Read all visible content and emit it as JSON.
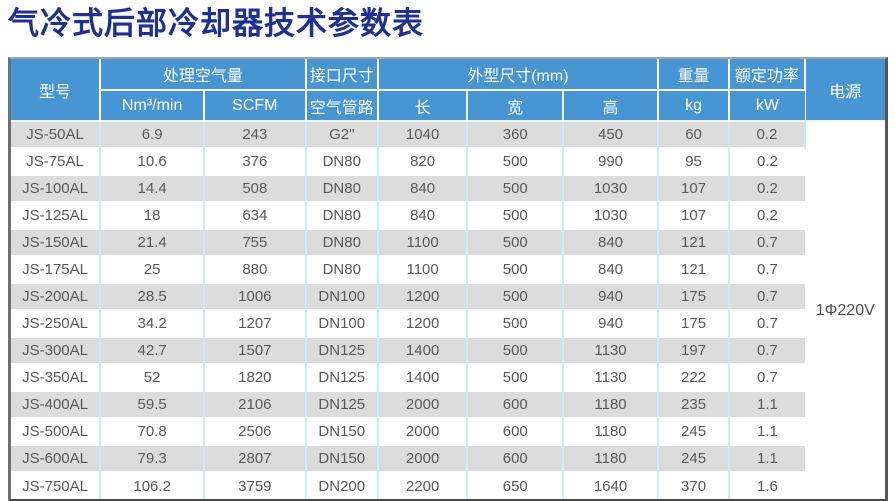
{
  "title": "气冷式后部冷却器技术参数表",
  "colors": {
    "title_text": "#1f3190",
    "header_bg": "#4796d3",
    "header_text": "#ffffff",
    "row_stripe": "#dcdcdc",
    "column_divider": "#d3e9f6",
    "body_text": "#595959"
  },
  "table": {
    "header": {
      "model": "型号",
      "air_volume": "处理空气量",
      "air_volume_units": [
        "Nm³/min",
        "SCFM"
      ],
      "interface_size": "接口尺寸",
      "interface_sub": "空气管路",
      "dimensions": "外型尺寸(mm)",
      "dimension_subs": [
        "长",
        "宽",
        "高"
      ],
      "weight": "重量",
      "weight_unit": "kg",
      "rated_power": "额定功率",
      "rated_power_unit": "kW",
      "power_supply": "电源"
    },
    "power_supply_value": "1Φ220V",
    "column_keys": [
      "model",
      "nm3-per-min",
      "scfm",
      "air-pipe",
      "length",
      "width",
      "height",
      "weight-kg",
      "power-kw"
    ],
    "rows": [
      [
        "JS-50AL",
        "6.9",
        "243",
        "G2\"",
        "1040",
        "360",
        "450",
        "60",
        "0.2"
      ],
      [
        "JS-75AL",
        "10.6",
        "376",
        "DN80",
        "820",
        "500",
        "990",
        "95",
        "0.2"
      ],
      [
        "JS-100AL",
        "14.4",
        "508",
        "DN80",
        "840",
        "500",
        "1030",
        "107",
        "0.2"
      ],
      [
        "JS-125AL",
        "18",
        "634",
        "DN80",
        "840",
        "500",
        "1030",
        "107",
        "0.2"
      ],
      [
        "JS-150AL",
        "21.4",
        "755",
        "DN80",
        "1100",
        "500",
        "840",
        "121",
        "0.7"
      ],
      [
        "JS-175AL",
        "25",
        "880",
        "DN80",
        "1100",
        "500",
        "840",
        "121",
        "0.7"
      ],
      [
        "JS-200AL",
        "28.5",
        "1006",
        "DN100",
        "1200",
        "500",
        "940",
        "175",
        "0.7"
      ],
      [
        "JS-250AL",
        "34.2",
        "1207",
        "DN100",
        "1200",
        "500",
        "940",
        "175",
        "0.7"
      ],
      [
        "JS-300AL",
        "42.7",
        "1507",
        "DN125",
        "1400",
        "500",
        "1130",
        "197",
        "0.7"
      ],
      [
        "JS-350AL",
        "52",
        "1820",
        "DN125",
        "1400",
        "500",
        "1130",
        "222",
        "0.7"
      ],
      [
        "JS-400AL",
        "59.5",
        "2106",
        "DN125",
        "2000",
        "600",
        "1180",
        "235",
        "1.1"
      ],
      [
        "JS-500AL",
        "70.8",
        "2506",
        "DN150",
        "2000",
        "600",
        "1180",
        "245",
        "1.1"
      ],
      [
        "JS-600AL",
        "79.3",
        "2807",
        "DN150",
        "2000",
        "600",
        "1180",
        "245",
        "1.1"
      ],
      [
        "JS-750AL",
        "106.2",
        "3759",
        "DN200",
        "2200",
        "650",
        "1640",
        "370",
        "1.6"
      ]
    ]
  }
}
